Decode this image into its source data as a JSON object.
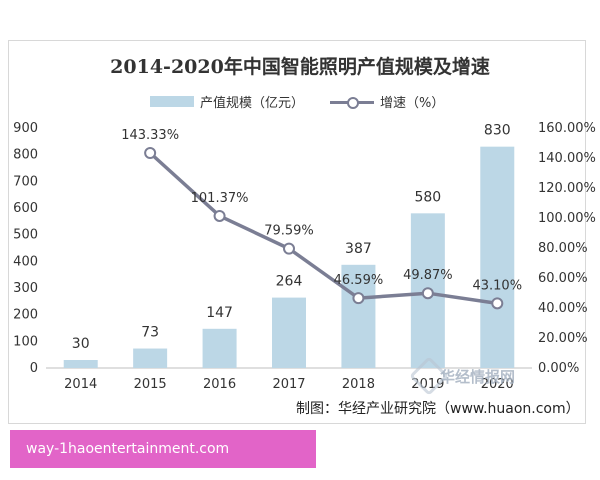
{
  "page": {
    "banner_text": "way-1haoentertainment.com",
    "watermark_text": "华经情报网"
  },
  "chart_data": {
    "type": "bar",
    "title": "2014-2020年中国智能照明产值规模及增速",
    "categories": [
      "2014",
      "2015",
      "2016",
      "2017",
      "2018",
      "2019",
      "2020"
    ],
    "series": [
      {
        "name": "产值规模（亿元）",
        "type": "bar",
        "axis": "left",
        "values": [
          30,
          73,
          147,
          264,
          387,
          580,
          830
        ],
        "labels": [
          "30",
          "73",
          "147",
          "264",
          "387",
          "580",
          "830"
        ]
      },
      {
        "name": "增速（%）",
        "type": "line",
        "axis": "right",
        "values": [
          null,
          143.33,
          101.37,
          79.59,
          46.59,
          49.87,
          43.1
        ],
        "labels": [
          "",
          "143.33%",
          "101.37%",
          "79.59%",
          "46.59%",
          "49.87%",
          "43.10%"
        ]
      }
    ],
    "ylim_left": [
      0,
      900
    ],
    "yticks_left": [
      "0",
      "100",
      "200",
      "300",
      "400",
      "500",
      "600",
      "700",
      "800",
      "900"
    ],
    "ylim_right": [
      0,
      160
    ],
    "yticks_right": [
      "0.00%",
      "20.00%",
      "40.00%",
      "60.00%",
      "80.00%",
      "100.00%",
      "120.00%",
      "140.00%",
      "160.00%"
    ],
    "grid": false,
    "legend_position": "top",
    "colors": {
      "bar": "#bcd7e6",
      "line": "#7b7e94",
      "axis": "#bfbfbf",
      "text": "#333333"
    },
    "source": "制图：华经产业研究院（www.huaon.com）"
  }
}
